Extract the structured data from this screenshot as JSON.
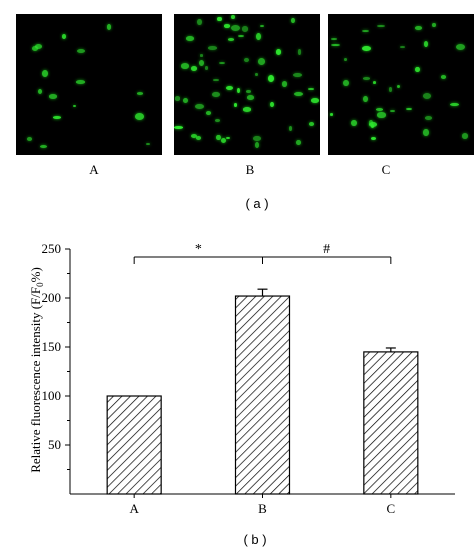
{
  "figure": {
    "caption_a": "( a )",
    "caption_b": "( b )"
  },
  "micrographs": [
    {
      "label": "A",
      "relative_density": "low"
    },
    {
      "label": "B",
      "relative_density": "high"
    },
    {
      "label": "C",
      "relative_density": "medium"
    }
  ],
  "chart_data": {
    "type": "bar",
    "categories": [
      "A",
      "B",
      "C"
    ],
    "values": [
      100,
      202,
      145
    ],
    "error": [
      0,
      7,
      4
    ],
    "title": "",
    "xlabel": "",
    "ylabel": "Relative fluorescence intensity (F/F",
    "ylabel_sub": "0",
    "ylabel_suffix": "%)",
    "ylim": [
      0,
      250
    ],
    "yticks": [
      50,
      100,
      150,
      200,
      250
    ],
    "fill_pattern": "diagonal-hatch",
    "colors": {
      "bar_fill": "#ffffff",
      "hatch": "#000000",
      "axis": "#000000"
    },
    "significance": [
      {
        "symbol": "*",
        "from": "A",
        "to": "B"
      },
      {
        "symbol": "#",
        "from": "B",
        "to": "C"
      }
    ]
  }
}
